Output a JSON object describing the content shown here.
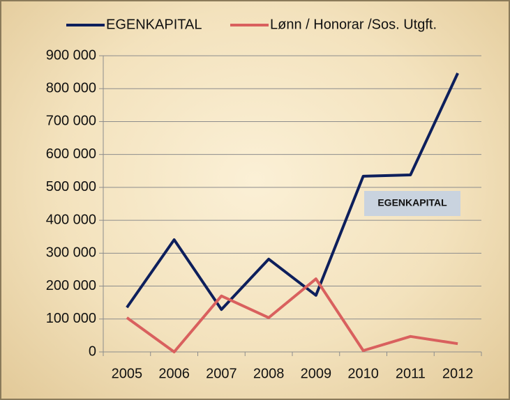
{
  "chart_data": {
    "type": "line",
    "categories": [
      "2005",
      "2006",
      "2007",
      "2008",
      "2009",
      "2010",
      "2011",
      "2012"
    ],
    "series": [
      {
        "name": "EGENKAPITAL",
        "color": "#0d1f5c",
        "values": [
          135000,
          341000,
          129000,
          282000,
          172000,
          534000,
          538000,
          847000
        ]
      },
      {
        "name": "Lønn / Honorar /Sos. Utgft.",
        "color": "#d9605e",
        "values": [
          104000,
          0,
          170000,
          104000,
          222000,
          4000,
          47000,
          25000
        ]
      }
    ],
    "ylim": [
      0,
      900000
    ],
    "yticks": [
      0,
      {
        "value": 100000,
        "label": "100 000"
      },
      {
        "value": 200000,
        "label": "200 000"
      },
      {
        "value": 300000,
        "label": "300 000"
      },
      {
        "value": 400000,
        "label": "400 000"
      },
      {
        "value": 500000,
        "label": "500 000"
      },
      {
        "value": 600000,
        "label": "600 000"
      },
      {
        "value": 700000,
        "label": "700 000"
      },
      {
        "value": 800000,
        "label": "800 000"
      },
      {
        "value": 900000,
        "label": "900 000"
      }
    ],
    "grid": true,
    "legend": "top",
    "annotations": [
      {
        "text": "EGENKAPITAL"
      }
    ]
  }
}
